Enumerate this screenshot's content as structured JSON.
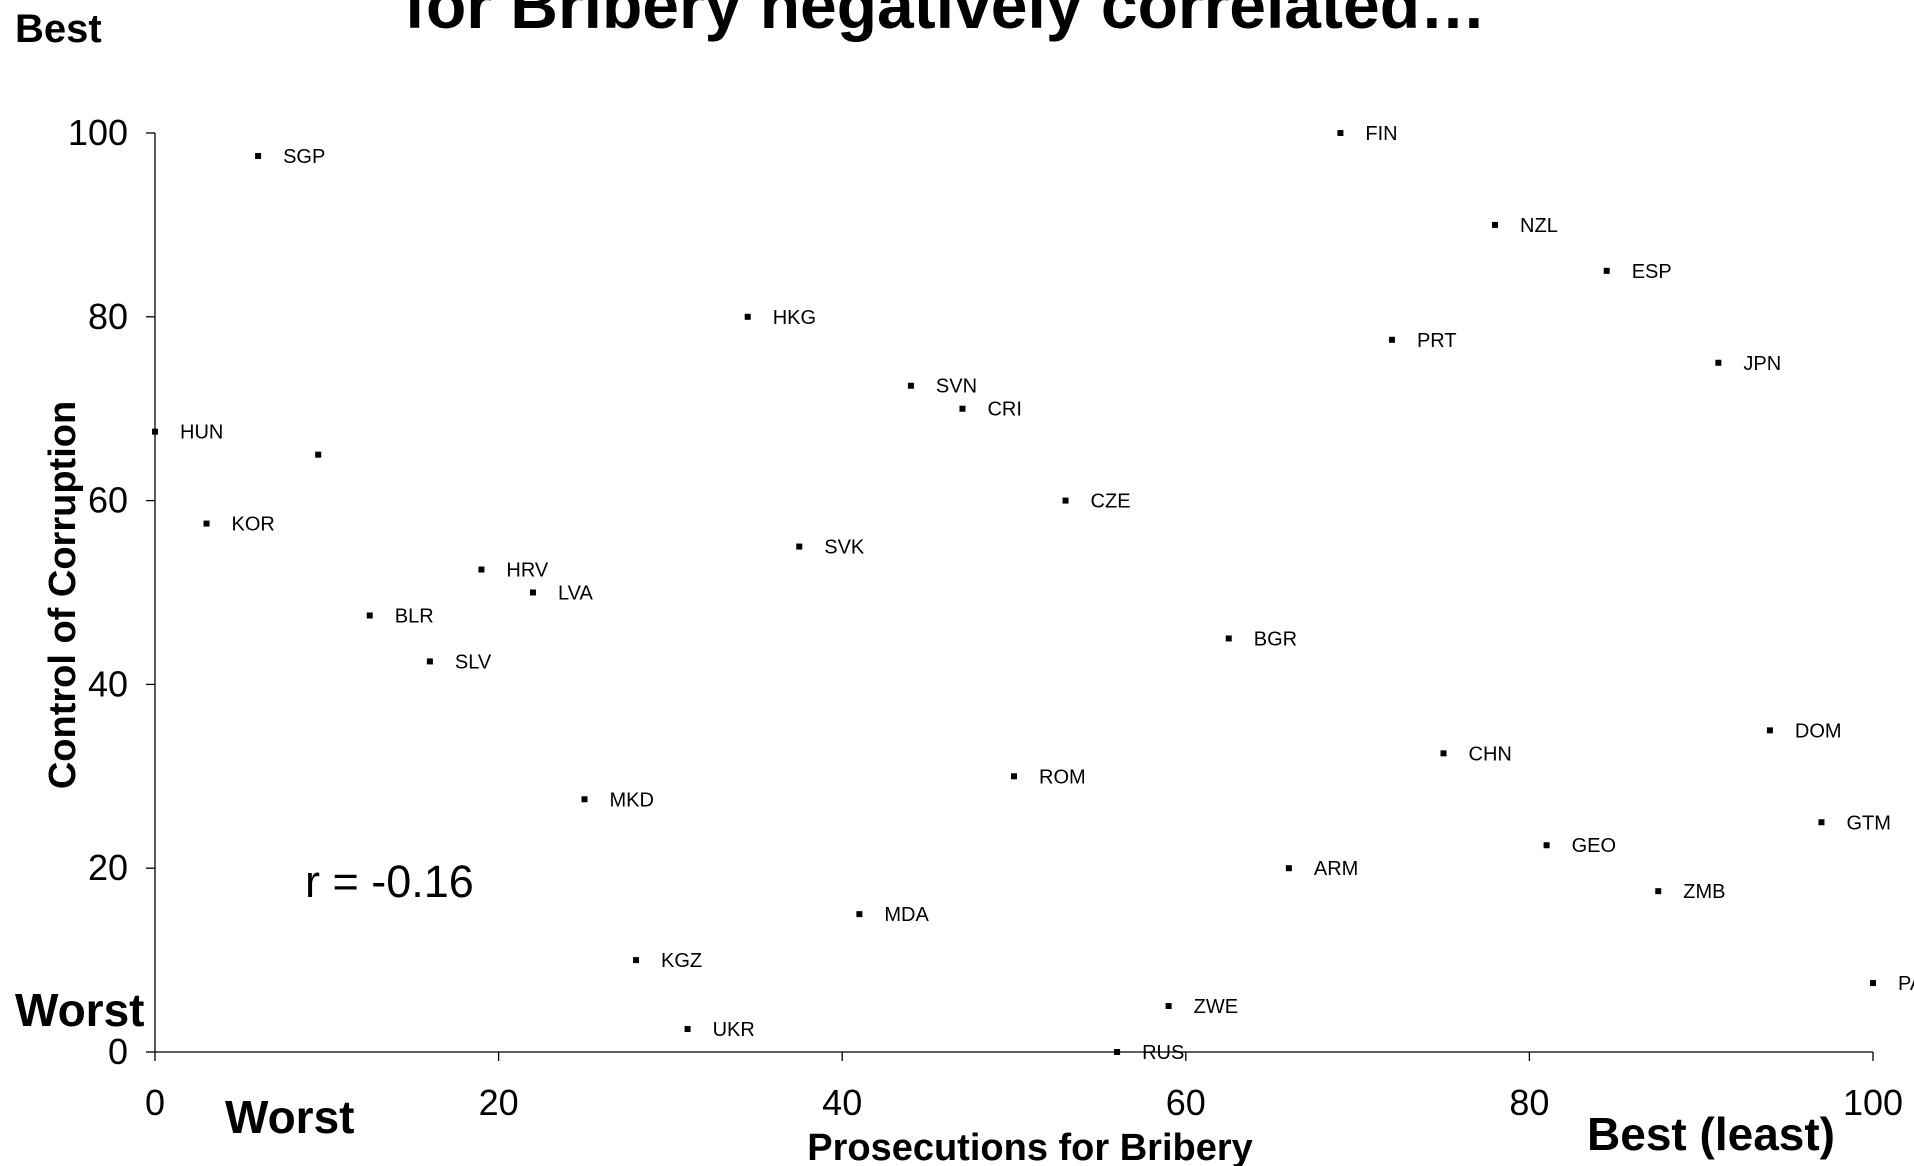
{
  "chart_data": {
    "type": "scatter",
    "title": "for Bribery negatively correlated…",
    "xlabel": "Prosecutions for Bribery",
    "ylabel": "Control of Corruption",
    "x_worst_label": "Worst",
    "x_best_label": "Best (least)",
    "y_best_label": "Best",
    "y_worst_label": "Worst",
    "annotation": "r = -0.16",
    "xlim": [
      0,
      100
    ],
    "ylim": [
      0,
      100
    ],
    "xticks": [
      "0",
      "20",
      "40",
      "60",
      "80",
      "100"
    ],
    "yticks": [
      "0",
      "20",
      "40",
      "60",
      "80",
      "100"
    ],
    "grid": false,
    "points": [
      {
        "label": "SGP",
        "x": 6,
        "y": 97.5
      },
      {
        "label": "FIN",
        "x": 69,
        "y": 100
      },
      {
        "label": "NZL",
        "x": 78,
        "y": 90
      },
      {
        "label": "ESP",
        "x": 84.5,
        "y": 85
      },
      {
        "label": "HKG",
        "x": 34.5,
        "y": 80
      },
      {
        "label": "PRT",
        "x": 72,
        "y": 77.5
      },
      {
        "label": "JPN",
        "x": 91,
        "y": 75
      },
      {
        "label": "SVN",
        "x": 44,
        "y": 72.5
      },
      {
        "label": "CRI",
        "x": 47,
        "y": 70
      },
      {
        "label": "HUN",
        "x": 0,
        "y": 67.5
      },
      {
        "label": "",
        "x": 9.5,
        "y": 65
      },
      {
        "label": "CZE",
        "x": 53,
        "y": 60
      },
      {
        "label": "KOR",
        "x": 3,
        "y": 57.5
      },
      {
        "label": "SVK",
        "x": 37.5,
        "y": 55
      },
      {
        "label": "HRV",
        "x": 19,
        "y": 52.5
      },
      {
        "label": "LVA",
        "x": 22,
        "y": 50
      },
      {
        "label": "BLR",
        "x": 12.5,
        "y": 47.5
      },
      {
        "label": "BGR",
        "x": 62.5,
        "y": 45
      },
      {
        "label": "SLV",
        "x": 16,
        "y": 42.5
      },
      {
        "label": "DOM",
        "x": 94,
        "y": 35
      },
      {
        "label": "CHN",
        "x": 75,
        "y": 32.5
      },
      {
        "label": "ROM",
        "x": 50,
        "y": 30
      },
      {
        "label": "MKD",
        "x": 25,
        "y": 27.5
      },
      {
        "label": "GTM",
        "x": 97,
        "y": 25
      },
      {
        "label": "GEO",
        "x": 81,
        "y": 22.5
      },
      {
        "label": "ARM",
        "x": 66,
        "y": 20
      },
      {
        "label": "ZMB",
        "x": 87.5,
        "y": 17.5
      },
      {
        "label": "MDA",
        "x": 41,
        "y": 15
      },
      {
        "label": "KGZ",
        "x": 28,
        "y": 10
      },
      {
        "label": "PAK",
        "x": 100,
        "y": 7.5
      },
      {
        "label": "ZWE",
        "x": 59,
        "y": 5
      },
      {
        "label": "UKR",
        "x": 31,
        "y": 2.5
      },
      {
        "label": "RUS",
        "x": 56,
        "y": 0
      }
    ]
  }
}
